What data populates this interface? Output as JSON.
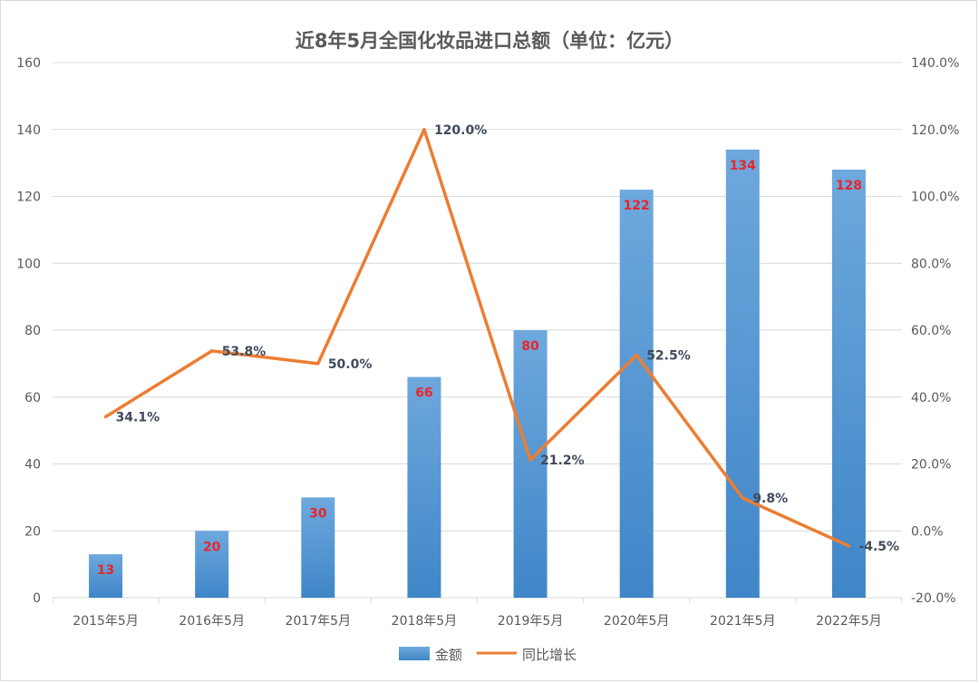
{
  "chart_data": {
    "type": "bar",
    "title": "近8年5月全国化妆品进口总额（单位：亿元）",
    "categories": [
      "2015年5月",
      "2016年5月",
      "2017年5月",
      "2018年5月",
      "2019年5月",
      "2020年5月",
      "2021年5月",
      "2022年5月"
    ],
    "series": [
      {
        "name": "金额",
        "type": "bar",
        "axis": "left",
        "values": [
          13,
          20,
          30,
          66,
          80,
          122,
          134,
          128
        ]
      },
      {
        "name": "同比增长",
        "type": "line",
        "axis": "right",
        "values": [
          34.1,
          53.8,
          50.0,
          120.0,
          21.2,
          52.5,
          9.8,
          -4.5
        ]
      }
    ],
    "bar_labels": [
      "13",
      "20",
      "30",
      "66",
      "80",
      "122",
      "134",
      "128"
    ],
    "line_labels": [
      "34.1%",
      "53.8%",
      "50.0%",
      "120.0%",
      "21.2%",
      "52.5%",
      "9.8%",
      "-4.5%"
    ],
    "y_left": {
      "min": 0,
      "max": 160,
      "step": 20,
      "ticks": [
        "0",
        "20",
        "40",
        "60",
        "80",
        "100",
        "120",
        "140",
        "160"
      ]
    },
    "y_right": {
      "min": -20,
      "max": 140,
      "step": 20,
      "ticks": [
        "-20.0%",
        "0.0%",
        "20.0%",
        "40.0%",
        "60.0%",
        "80.0%",
        "100.0%",
        "120.0%",
        "140.0%"
      ]
    },
    "grid": true,
    "legend_position": "bottom",
    "colors": {
      "bar": "#5b9bd5",
      "bar_dark": "#3f86c8",
      "line": "#ed7d31",
      "bar_label": "#e8262b",
      "line_label": "#404a5c"
    }
  }
}
